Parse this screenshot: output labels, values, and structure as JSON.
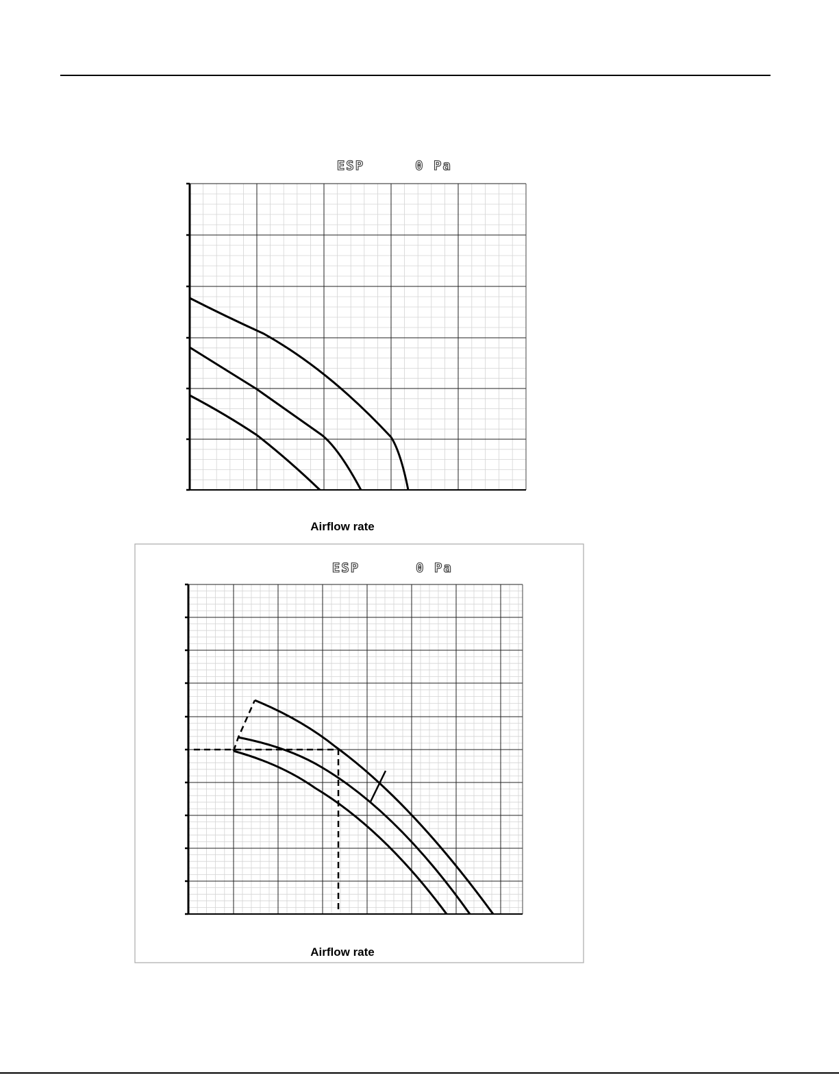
{
  "figures": [
    {
      "label": "ESP",
      "value_text": "0 Pa",
      "x_label": "Airflow rate"
    },
    {
      "label": "ESP",
      "value_text": "0 Pa",
      "x_label": "Airflow rate"
    }
  ]
}
